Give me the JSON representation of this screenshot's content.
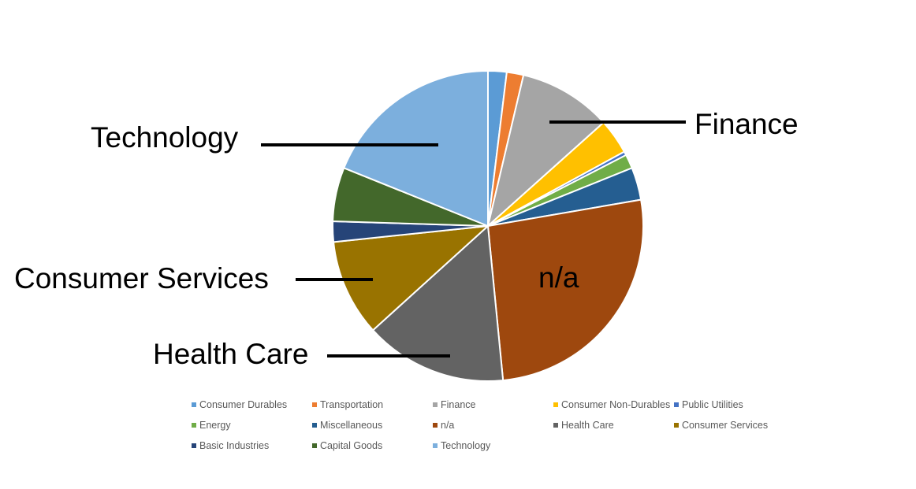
{
  "chart_data": {
    "type": "pie",
    "title": "",
    "slices": [
      {
        "label": "Consumer Durables",
        "value": 2.0,
        "color": "#5B9BD5"
      },
      {
        "label": "Transportation",
        "value": 1.8,
        "color": "#ED7D31"
      },
      {
        "label": "Finance",
        "value": 10.0,
        "color": "#A5A5A5"
      },
      {
        "label": "Consumer Non-Durables",
        "value": 3.8,
        "color": "#FFC000"
      },
      {
        "label": "Public Utilities",
        "value": 0.4,
        "color": "#4472C4"
      },
      {
        "label": "Energy",
        "value": 1.5,
        "color": "#70AD47"
      },
      {
        "label": "Miscellaneous",
        "value": 3.5,
        "color": "#255E91"
      },
      {
        "label": "n/a",
        "value": 27.0,
        "color": "#9E480E"
      },
      {
        "label": "Health Care",
        "value": 15.3,
        "color": "#636363"
      },
      {
        "label": "Consumer Services",
        "value": 10.4,
        "color": "#997300"
      },
      {
        "label": "Basic Industries",
        "value": 2.2,
        "color": "#264478"
      },
      {
        "label": "Capital Goods",
        "value": 5.8,
        "color": "#43682B"
      },
      {
        "label": "Technology",
        "value": 19.5,
        "color": "#7CAFDD"
      }
    ],
    "annotations": [
      {
        "slice": "Technology",
        "text": "Technology"
      },
      {
        "slice": "Finance",
        "text": "Finance"
      },
      {
        "slice": "n/a",
        "text": "n/a"
      },
      {
        "slice": "Consumer Services",
        "text": "Consumer Services"
      },
      {
        "slice": "Health Care",
        "text": "Health Care"
      }
    ],
    "legend_position": "bottom"
  }
}
